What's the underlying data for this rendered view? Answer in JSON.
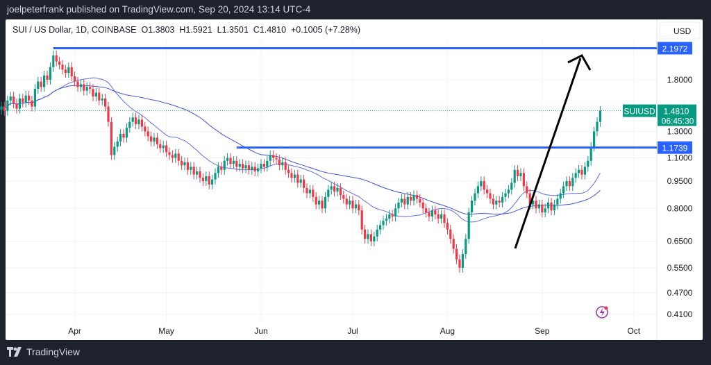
{
  "publisher_line": "joelpeterfrank published on TradingView.com, Sep 20, 2024 13:14 UTC-4",
  "legend": {
    "symbol": "SUI / US Dollar, 1D, COINBASE",
    "open": "O1.3803",
    "high": "H1.5921",
    "low": "L1.3501",
    "close": "C1.4810",
    "change": "+0.1005 (+7.28%)"
  },
  "footer": {
    "brand": "TradingView"
  },
  "colors": {
    "up": "#089981",
    "down": "#f23645",
    "ma_fast": "#5b6cf0",
    "ma_slow": "#3f51d8",
    "hline": "#2962ff",
    "label_bg": "#2962ff",
    "price_bg": "#089981",
    "background": "#1e222d"
  },
  "chart_data": {
    "type": "candlestick",
    "scale": "log",
    "currency_label": "USD",
    "start_date": "2024-03-08",
    "x_tick_labels": [
      "Apr",
      "May",
      "Jun",
      "Jul",
      "Aug",
      "Sep",
      "Oct"
    ],
    "y_tick_labels": [
      "1.8000",
      "1.3000",
      "1.1000",
      "0.9500",
      "0.8000",
      "0.6500",
      "0.5500",
      "0.4700",
      "0.4100"
    ],
    "ylim": [
      0.38,
      2.45
    ],
    "closes": [
      1.52,
      1.48,
      1.58,
      1.62,
      1.55,
      1.5,
      1.6,
      1.56,
      1.63,
      1.58,
      1.52,
      1.7,
      1.78,
      1.72,
      1.85,
      1.8,
      1.95,
      2.1,
      2.02,
      1.98,
      1.92,
      1.88,
      1.95,
      1.84,
      1.78,
      1.72,
      1.75,
      1.68,
      1.72,
      1.7,
      1.62,
      1.66,
      1.58,
      1.6,
      1.52,
      1.38,
      1.12,
      1.18,
      1.22,
      1.28,
      1.25,
      1.33,
      1.38,
      1.42,
      1.36,
      1.4,
      1.34,
      1.3,
      1.26,
      1.22,
      1.25,
      1.2,
      1.17,
      1.19,
      1.14,
      1.12,
      1.1,
      1.13,
      1.08,
      1.05,
      1.07,
      1.02,
      1.04,
      0.99,
      1.01,
      0.97,
      0.95,
      0.98,
      0.93,
      0.96,
      1.0,
      1.04,
      1.02,
      1.08,
      1.1,
      1.06,
      1.08,
      1.04,
      1.06,
      1.03,
      1.05,
      1.02,
      1.04,
      1.01,
      1.03,
      1.06,
      1.04,
      1.08,
      1.12,
      1.1,
      1.09,
      1.05,
      1.07,
      1.02,
      1.0,
      0.97,
      0.99,
      0.94,
      0.96,
      0.91,
      0.88,
      0.9,
      0.86,
      0.82,
      0.84,
      0.8,
      0.86,
      0.9,
      0.92,
      0.89,
      0.91,
      0.87,
      0.85,
      0.82,
      0.84,
      0.8,
      0.82,
      0.79,
      0.7,
      0.66,
      0.68,
      0.65,
      0.67,
      0.7,
      0.72,
      0.74,
      0.75,
      0.77,
      0.76,
      0.8,
      0.83,
      0.85,
      0.82,
      0.86,
      0.84,
      0.87,
      0.85,
      0.83,
      0.8,
      0.78,
      0.76,
      0.79,
      0.77,
      0.75,
      0.77,
      0.73,
      0.7,
      0.66,
      0.62,
      0.58,
      0.55,
      0.6,
      0.66,
      0.78,
      0.84,
      0.88,
      0.92,
      0.95,
      0.9,
      0.88,
      0.85,
      0.82,
      0.84,
      0.83,
      0.86,
      0.88,
      0.9,
      0.94,
      1.02,
      0.98,
      1.0,
      0.92,
      0.88,
      0.82,
      0.84,
      0.8,
      0.82,
      0.78,
      0.8,
      0.83,
      0.79,
      0.82,
      0.85,
      0.88,
      0.92,
      0.95,
      0.92,
      0.97,
      1.0,
      1.02,
      0.99,
      1.04,
      1.08,
      1.18,
      1.3,
      1.38,
      1.481
    ],
    "moving_averages": [
      {
        "type": "SMA",
        "period": 20
      },
      {
        "type": "SMA",
        "period": 50
      }
    ],
    "horizontal_levels": [
      {
        "value": 2.1972,
        "label": "2.1972",
        "from": "2024-03-25"
      },
      {
        "value": 1.1739,
        "label": "1.1739",
        "from": "2024-05-24"
      }
    ],
    "current_price": {
      "symbol": "SUIUSD",
      "value": "1.4810",
      "countdown": "06:45:30"
    },
    "annotation": "upward arrow from late Aug lows toward 2.1972"
  }
}
